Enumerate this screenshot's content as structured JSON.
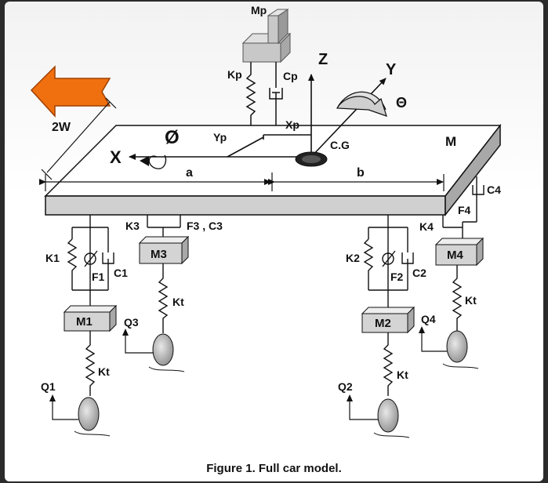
{
  "caption": "Figure 1. Full car model.",
  "colors": {
    "arrow": "#f07010",
    "block": "#d4d4d4",
    "line": "#111111"
  },
  "labels": {
    "mp": "Mp",
    "kp": "Kp",
    "cp": "Cp",
    "z": "Z",
    "y": "Y",
    "theta": "Θ",
    "xp": "Xp",
    "yp": "Yp",
    "phi": "Ø",
    "x": "X",
    "cg": "C.G",
    "m": "M",
    "two_w": "2W",
    "a": "a",
    "b": "b",
    "c4": "C4",
    "f4": "F4",
    "k4": "K4",
    "m4": "M4",
    "k3": "K3",
    "f3c3": "F3 , C3",
    "m3": "M3",
    "k1": "K1",
    "f1": "F1",
    "c1": "C1",
    "m1": "M1",
    "q3": "Q3",
    "k2": "K2",
    "f2": "F2",
    "c2": "C2",
    "m2": "M2",
    "q4": "Q4",
    "kt_m3": "Kt",
    "kt_m1": "Kt",
    "kt_m4": "Kt",
    "kt_m2": "Kt",
    "q1": "Q1",
    "q2": "Q2"
  }
}
